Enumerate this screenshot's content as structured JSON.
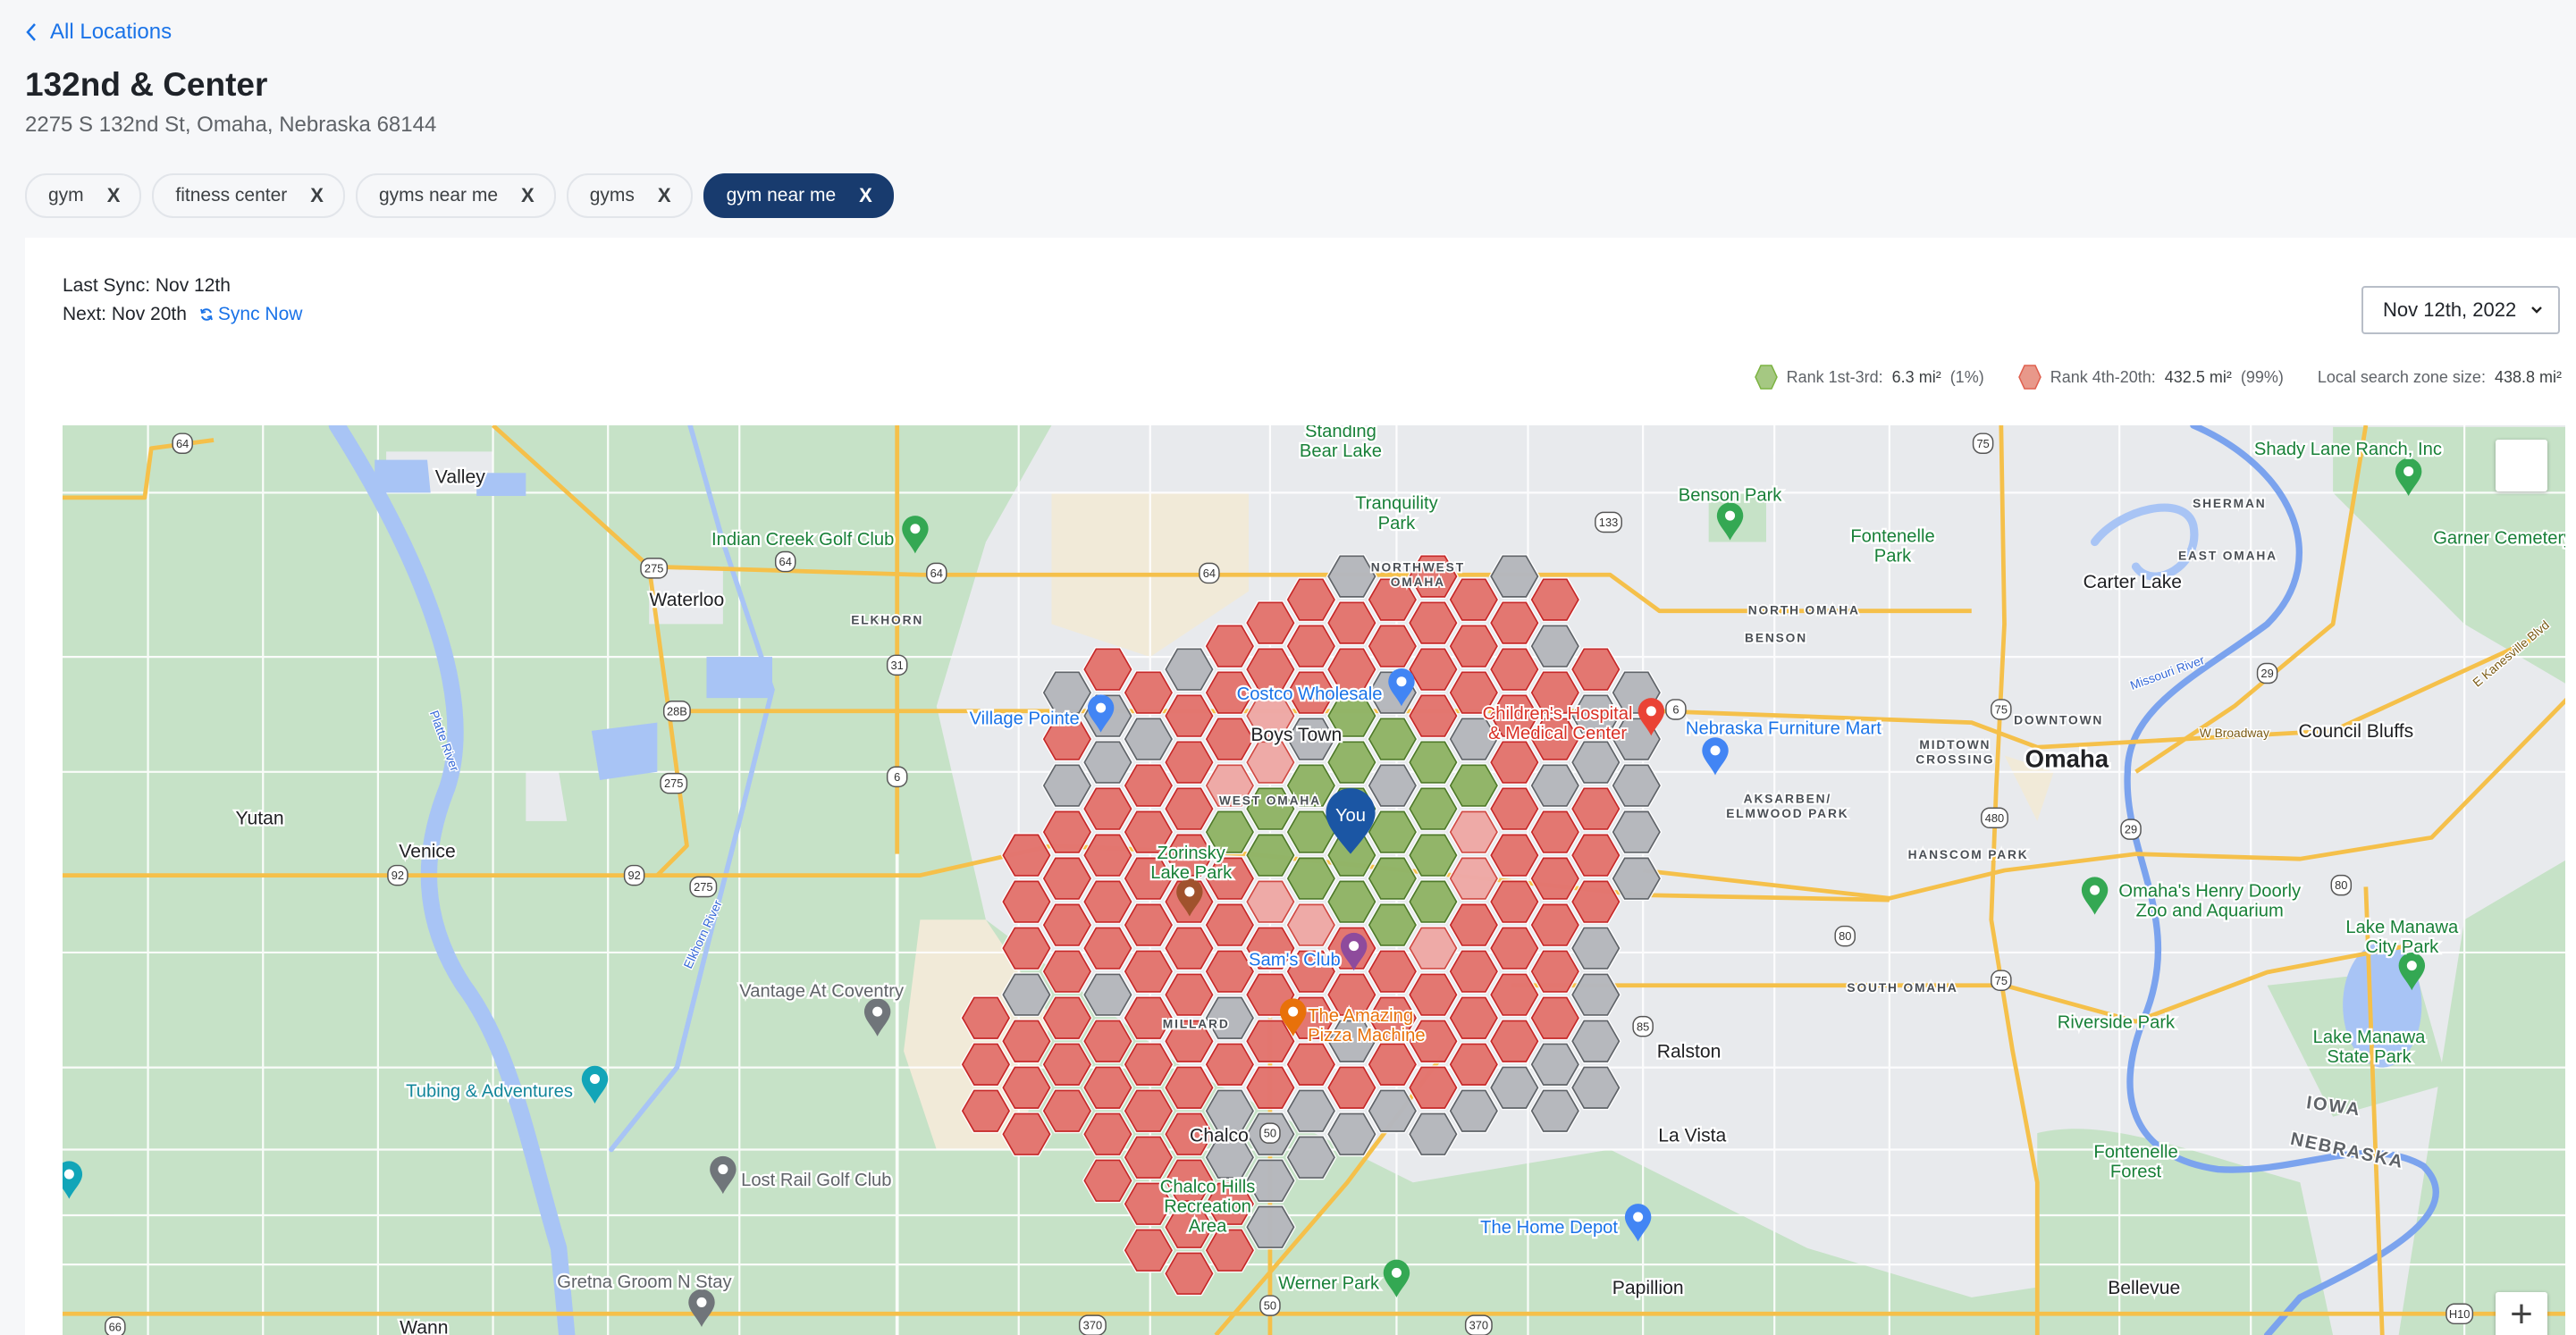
{
  "nav": {
    "back_label": "All Locations"
  },
  "location": {
    "name": "132nd & Center",
    "address": "2275 S 132nd St, Omaha, Nebraska 68144"
  },
  "keywords": [
    {
      "label": "gym",
      "active": false
    },
    {
      "label": "fitness center",
      "active": false
    },
    {
      "label": "gyms near me",
      "active": false
    },
    {
      "label": "gyms",
      "active": false
    },
    {
      "label": "gym near me",
      "active": true
    }
  ],
  "chip_remove_glyph": "X",
  "sync": {
    "last": "Last Sync: Nov 12th",
    "next": "Next: Nov 20th",
    "sync_now": "Sync Now"
  },
  "date_select": {
    "value": "Nov 12th, 2022"
  },
  "legend": {
    "top": {
      "label": "Rank 1st-3rd:",
      "area": "6.3 mi²",
      "pct": "(1%)",
      "color": "#a5c882"
    },
    "mid": {
      "label": "Rank 4th-20th:",
      "area": "432.5 mi²",
      "pct": "(99%)",
      "color": "#e8988a"
    },
    "zone": {
      "label": "Local search zone size:",
      "area": "438.8 mi²"
    }
  },
  "map": {
    "you_label": "You",
    "grid_legend": {
      "g": "rank 1st-3rd",
      "r": "rank 4th-20th",
      "p": "rank 4th-20th (light)",
      "x": "not ranked",
      ".": "no cell"
    },
    "grid_columns": [
      ".........rrr....",
      "......rrrxrrr...",
      "..xrxrrrrrrr....",
      "..rxxrrrrxrrrr..",
      "..rxrrrrrrrrrrr.",
      "..xrrrrrrrrrrrrr",
      ".rrrpgrrrxrxxrr.",
      ".rrppggprrrrxxx.",
      "rrrxgggprrrxx...",
      "xrrgggggrrxrx...",
      "rrxgxgggrrrx....",
      "rrrrggggprrrx...",
      "rrrxgpprrrrx....",
      "xrrrrrrrrrrx....",
      "rxrrxrrrrrxx....",
      "..rxxrrrxxxx....",
      "..xxxxx........."
    ],
    "colors": {
      "g": {
        "fill": "#7fa84f",
        "stroke": "#4f7a2a"
      },
      "r": {
        "fill": "#de5f58",
        "stroke": "#c62828"
      },
      "p": {
        "fill": "#eb9b98",
        "stroke": "#d04a44"
      },
      "x": {
        "fill": "#a9acb1",
        "stroke": "#5f6368"
      },
      "you_pin": "#1b56a4"
    },
    "labels": {
      "valley": "Valley",
      "waterloo": "Waterloo",
      "indian_creek": "Indian Creek Golf Club",
      "elkhorn": "ELKHORN",
      "yutan": "Yutan",
      "venice": "Venice",
      "vantage": "Vantage At Coventry",
      "tubing": "Tubing & Adventures",
      "lost_rail": "Lost Rail Golf Club",
      "gretna": "Gretna Groom N Stay",
      "wann": "Wann",
      "standing_bear": [
        "Standing",
        "Bear Lake"
      ],
      "tranquility": [
        "Tranquility",
        "Park"
      ],
      "northwest_omaha": [
        "NORTHWEST",
        "OMAHA"
      ],
      "village_pointe": "Village Pointe",
      "costco": "Costco Wholesale",
      "boys_town": "Boys Town",
      "west_omaha": "WEST OMAHA",
      "zorinsky": [
        "Zorinsky",
        "Lake Park"
      ],
      "sams": "Sam's Club",
      "pizza": [
        "The Amazing",
        "Pizza Machine"
      ],
      "millard": "MILLARD",
      "chalco": "Chalco",
      "chalco_hills": [
        "Chalco Hills",
        "Recreation",
        "Area"
      ],
      "werner": "Werner Park",
      "home_depot": "The Home Depot",
      "papillion": "Papillion",
      "la_vista": "La Vista",
      "ralston": "Ralston",
      "childrens": [
        "Children's Hospital",
        "& Medical Center"
      ],
      "nfm": "Nebraska Furniture Mart",
      "benson_park": "Benson Park",
      "fontenelle_park": [
        "Fontenelle",
        "Park"
      ],
      "north_omaha": "NORTH OMAHA",
      "benson": "BENSON",
      "aksarben": [
        "AKSARBEN/",
        "ELMWOOD PARK"
      ],
      "midtown": [
        "MIDTOWN",
        "CROSSING"
      ],
      "downtown": "DOWNTOWN",
      "omaha": "Omaha",
      "hanscom": "HANSCOM PARK",
      "south_omaha": "SOUTH OMAHA",
      "carter_lake": "Carter Lake",
      "sherman": "SHERMAN",
      "east_omaha": "EAST OMAHA",
      "shady_lane": "Shady Lane Ranch, Inc",
      "garner": "Garner Cemetery",
      "council_bluffs": "Council Bluffs",
      "w_broadway": "W Broadway",
      "zoo": [
        "Omaha's Henry Doorly",
        "Zoo and Aquarium"
      ],
      "manawa_city": [
        "Lake Manawa",
        "City Park"
      ],
      "riverside": "Riverside Park",
      "manawa_state": [
        "Lake Manawa",
        "State Park"
      ],
      "iowa": "IOWA",
      "nebraska": "NEBRASKA",
      "fontenelle_forest": [
        "Fontenelle",
        "Forest"
      ],
      "bellevue": "Bellevue",
      "platte_river": "Platte River",
      "elkhorn_river": "Elkhorn River",
      "missouri_river": "Missouri River",
      "kanesville": "E Kanesville Blvd"
    },
    "shields": [
      "64",
      "64",
      "64",
      "64",
      "275",
      "275",
      "275",
      "28B",
      "31",
      "6",
      "6",
      "92",
      "92",
      "50",
      "50",
      "370",
      "370",
      "133",
      "75",
      "75",
      "75",
      "480",
      "80",
      "80",
      "29",
      "29",
      "85",
      "66",
      "H10"
    ],
    "controls": {
      "fullscreen_icon": "fullscreen-icon",
      "zoom_in_glyph": "+"
    }
  }
}
